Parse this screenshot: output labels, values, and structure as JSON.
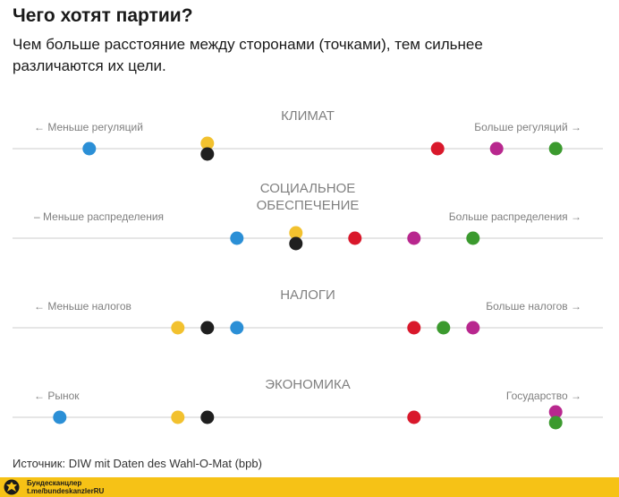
{
  "header": {
    "title": "Чего хотят партии?",
    "subtitle": "Чем больше расстояние между сторонами (точками), тем сильнее различаются их цели."
  },
  "source": "Источник: DIW mit Daten des Wahl-O-Mat (bpb)",
  "footer": {
    "brand_line1": "Бундесканцлер",
    "brand_line2": "t.me/bundeskanzlerRU",
    "logo_icon": "eagle-icon"
  },
  "colors": {
    "blue": "#2b8fd6",
    "yellow": "#f2c12e",
    "black": "#1f1f1f",
    "red": "#d9182b",
    "magenta": "#b8278e",
    "green": "#3b9a2e",
    "axis": "#cccccc",
    "label": "#808080",
    "footer": "#f6c216"
  },
  "chart_data": {
    "type": "scatter",
    "x_range": [
      0,
      100
    ],
    "series_colors": [
      "blue",
      "yellow",
      "black",
      "red",
      "magenta",
      "green"
    ],
    "axes": [
      {
        "title": [
          "КЛИМАТ"
        ],
        "left_label": "← Меньше регуляций",
        "right_label": "Больше регуляций →",
        "points": [
          {
            "color": "blue",
            "x": 13,
            "stack": 0
          },
          {
            "color": "yellow",
            "x": 33,
            "stack": -1
          },
          {
            "color": "black",
            "x": 33,
            "stack": 1
          },
          {
            "color": "red",
            "x": 72,
            "stack": 0
          },
          {
            "color": "magenta",
            "x": 82,
            "stack": 0
          },
          {
            "color": "green",
            "x": 92,
            "stack": 0
          }
        ]
      },
      {
        "title": [
          "СОЦИАЛЬНОЕ",
          "ОБЕСПЕЧЕНИЕ"
        ],
        "left_label": "– Меньше распределения",
        "right_label": "Больше распределения →",
        "points": [
          {
            "color": "blue",
            "x": 38,
            "stack": 0
          },
          {
            "color": "yellow",
            "x": 48,
            "stack": -1
          },
          {
            "color": "black",
            "x": 48,
            "stack": 1
          },
          {
            "color": "red",
            "x": 58,
            "stack": 0
          },
          {
            "color": "magenta",
            "x": 68,
            "stack": 0
          },
          {
            "color": "green",
            "x": 78,
            "stack": 0
          }
        ]
      },
      {
        "title": [
          "НАЛОГИ"
        ],
        "left_label": "← Меньше налогов",
        "right_label": "Больше налогов →",
        "points": [
          {
            "color": "yellow",
            "x": 28,
            "stack": 0
          },
          {
            "color": "black",
            "x": 33,
            "stack": 0
          },
          {
            "color": "blue",
            "x": 38,
            "stack": 0
          },
          {
            "color": "red",
            "x": 68,
            "stack": 0
          },
          {
            "color": "green",
            "x": 73,
            "stack": 0
          },
          {
            "color": "magenta",
            "x": 78,
            "stack": 0
          }
        ]
      },
      {
        "title": [
          "ЭКОНОМИКА"
        ],
        "left_label": "← Рынок",
        "right_label": "Государство →",
        "points": [
          {
            "color": "blue",
            "x": 8,
            "stack": 0
          },
          {
            "color": "yellow",
            "x": 28,
            "stack": 0
          },
          {
            "color": "black",
            "x": 33,
            "stack": 0
          },
          {
            "color": "red",
            "x": 68,
            "stack": 0
          },
          {
            "color": "magenta",
            "x": 92,
            "stack": -1
          },
          {
            "color": "green",
            "x": 92,
            "stack": 1
          }
        ]
      }
    ]
  }
}
